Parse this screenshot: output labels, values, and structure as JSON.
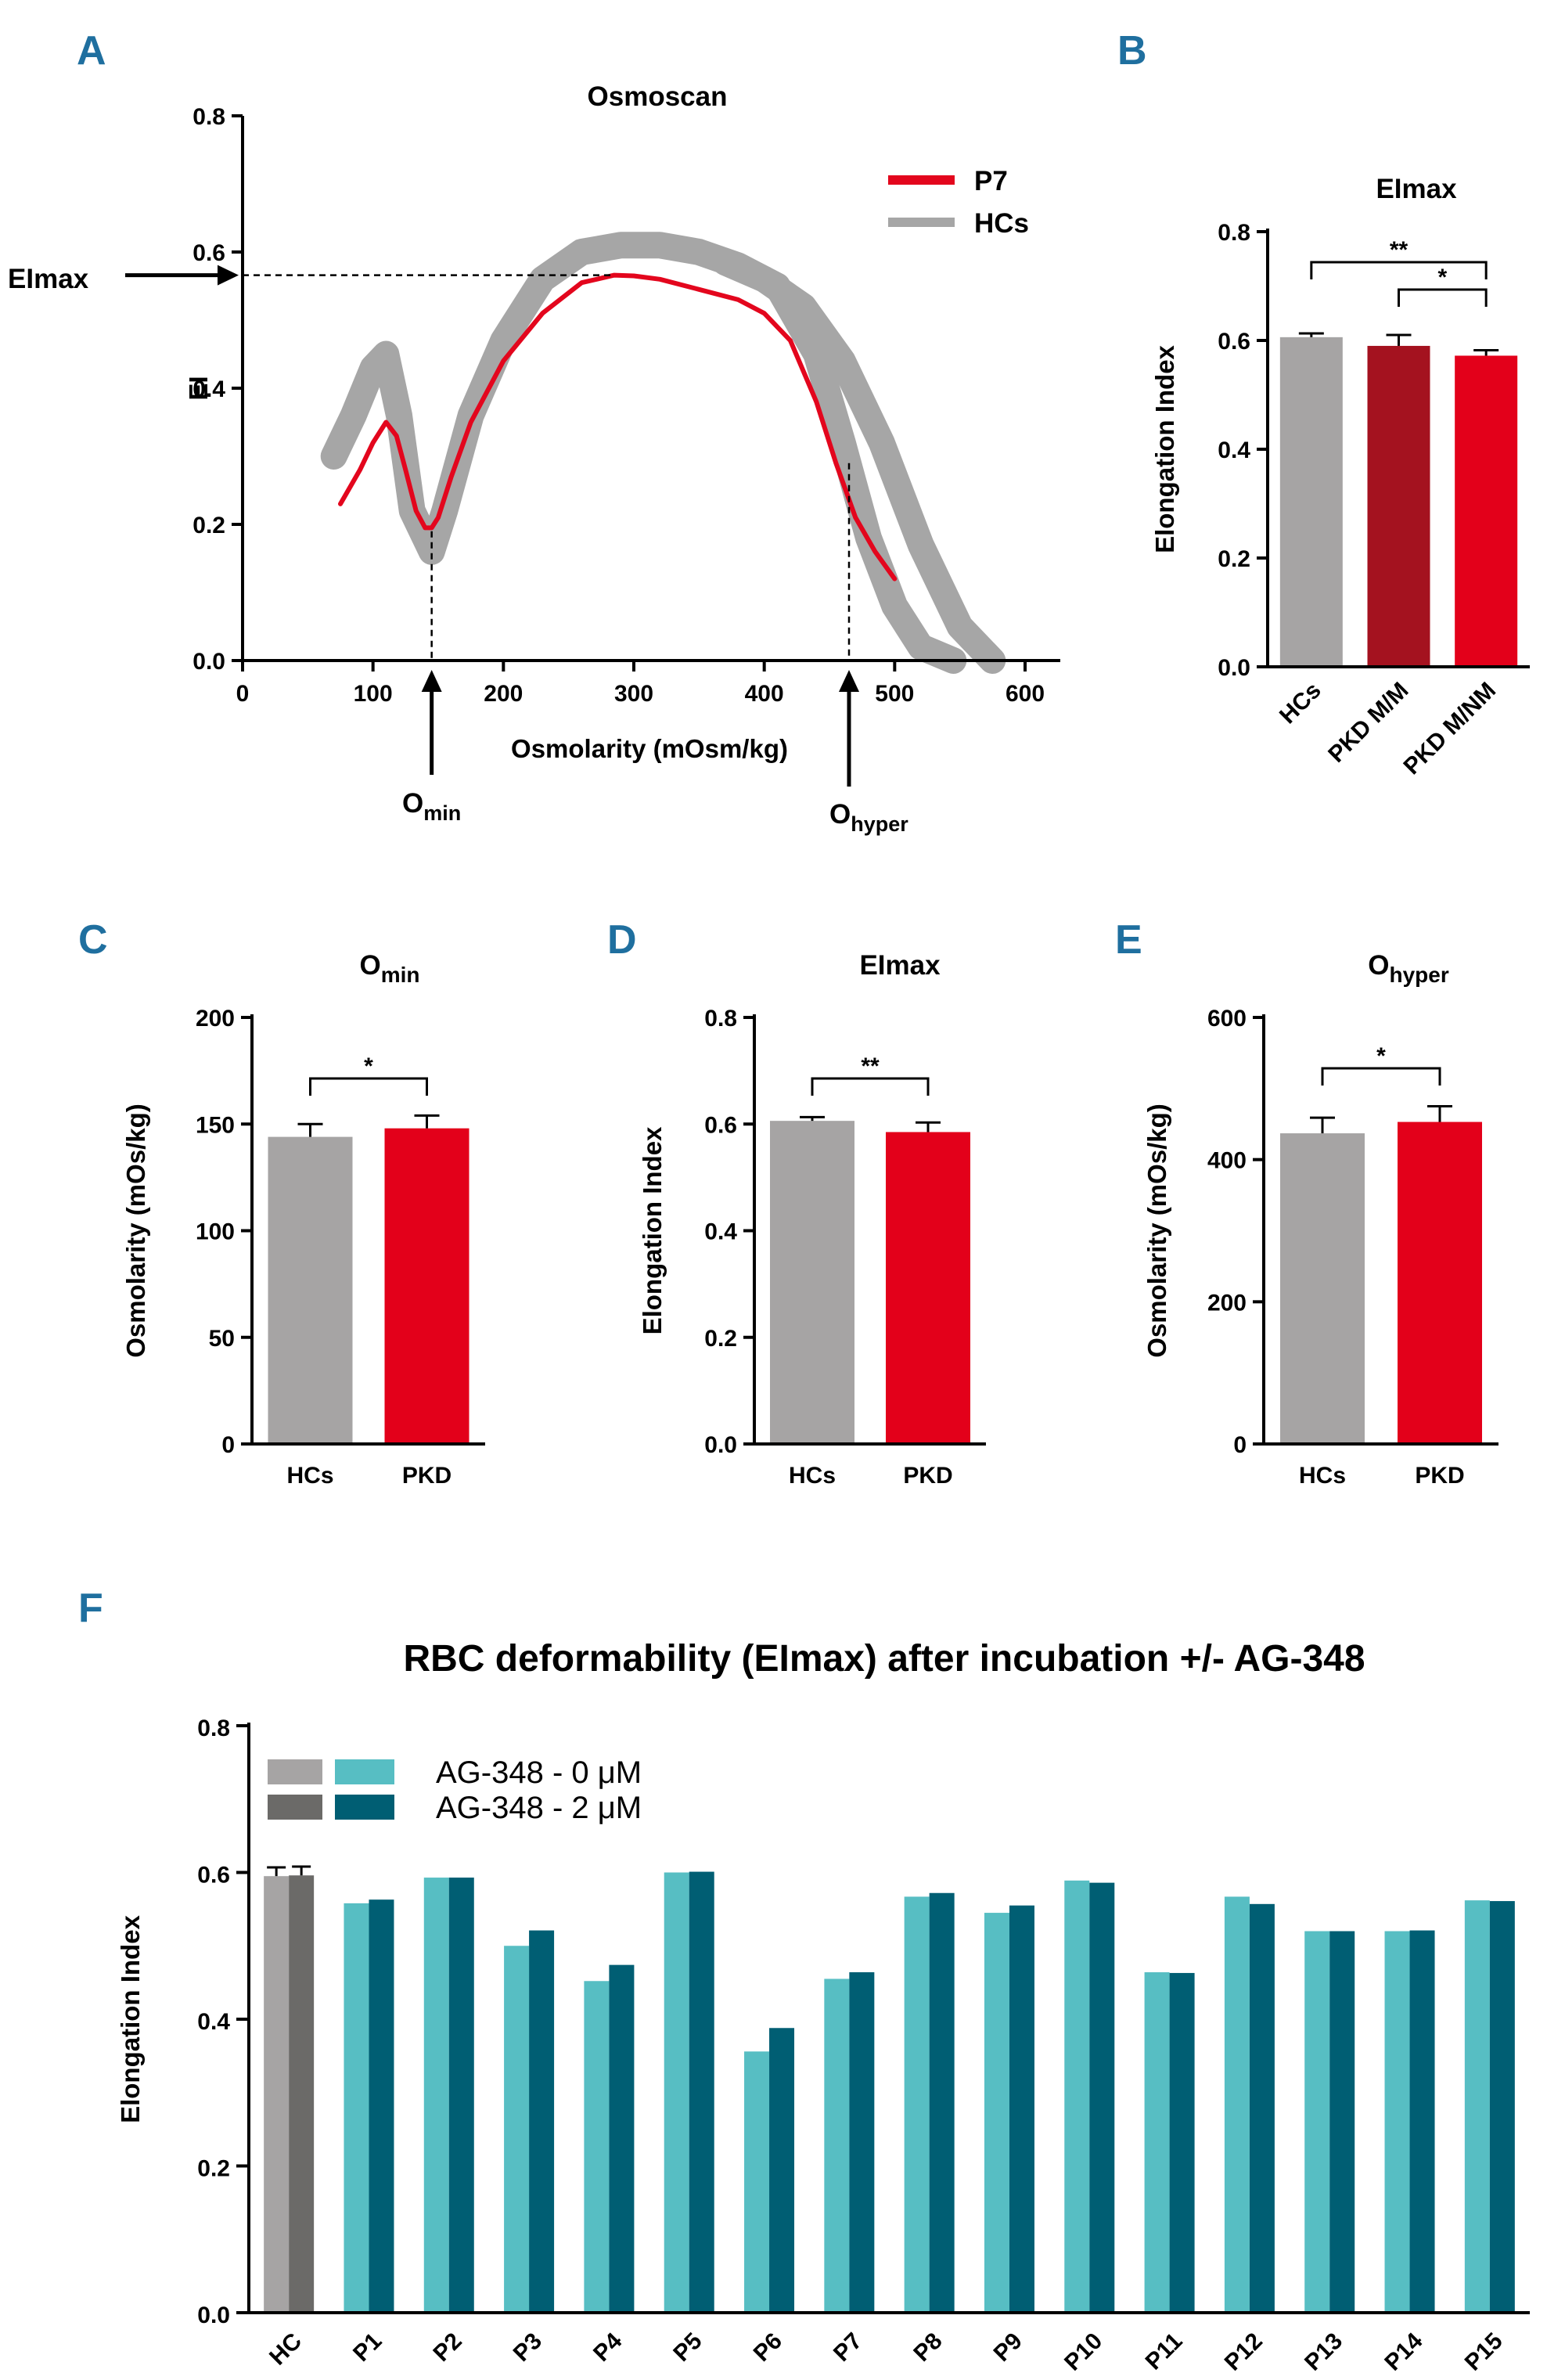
{
  "chart_data": [
    {
      "panel": "A",
      "type": "line",
      "title": "Osmoscan",
      "xlabel": "Osmolarity (mOsm/kg)",
      "ylabel": "EI",
      "xlim": [
        0,
        600
      ],
      "ylim": [
        0,
        0.8
      ],
      "xticks": [
        "0",
        "100",
        "200",
        "300",
        "400",
        "500",
        "600"
      ],
      "yticks": [
        "0.0",
        "0.2",
        "0.4",
        "0.6",
        "0.8"
      ],
      "legend": [
        "P7",
        "HCs"
      ],
      "colors": {
        "P7": "#e3061d",
        "HCs": "#a6a6a6"
      },
      "series": [
        {
          "name": "P7",
          "x": [
            75,
            90,
            100,
            110,
            118,
            125,
            133,
            140,
            145,
            150,
            160,
            175,
            200,
            230,
            260,
            285,
            300,
            320,
            350,
            380,
            400,
            420,
            440,
            455,
            470,
            485,
            500
          ],
          "y": [
            0.23,
            0.28,
            0.32,
            0.35,
            0.33,
            0.28,
            0.22,
            0.195,
            0.195,
            0.21,
            0.27,
            0.35,
            0.44,
            0.51,
            0.555,
            0.566,
            0.565,
            0.56,
            0.545,
            0.53,
            0.51,
            0.47,
            0.38,
            0.29,
            0.21,
            0.16,
            0.12
          ]
        },
        {
          "name": "HCs",
          "x": [
            70,
            85,
            100,
            110,
            120,
            130,
            145,
            155,
            175,
            200,
            230,
            260,
            290,
            320,
            350,
            380,
            410,
            440,
            460,
            480,
            500,
            520,
            545
          ],
          "y": [
            0.3,
            0.36,
            0.43,
            0.45,
            0.36,
            0.22,
            0.16,
            0.22,
            0.36,
            0.47,
            0.56,
            0.6,
            0.61,
            0.61,
            0.6,
            0.58,
            0.55,
            0.45,
            0.32,
            0.18,
            0.08,
            0.02,
            0.0
          ]
        },
        {
          "name": "HCs",
          "x": [
            370,
            400,
            430,
            460,
            490,
            520,
            550,
            575
          ],
          "y": [
            0.585,
            0.56,
            0.52,
            0.44,
            0.32,
            0.17,
            0.05,
            0.0
          ]
        }
      ],
      "annotations": {
        "elmax_label": "EImax",
        "elmax_value": 0.566,
        "omin_label": "O",
        "omin_sub": "min",
        "omin_x": 145,
        "ohyper_label": "O",
        "ohyper_sub": "hyper",
        "ohyper_x": 465
      }
    },
    {
      "panel": "B",
      "type": "bar",
      "title": "EImax",
      "ylabel": "Elongation Index",
      "ylim": [
        0,
        0.8
      ],
      "yticks": [
        "0.0",
        "0.2",
        "0.4",
        "0.6",
        "0.8"
      ],
      "categories": [
        "HCs",
        "PKD M/M",
        "PKD M/NM"
      ],
      "values": [
        0.606,
        0.59,
        0.572
      ],
      "errors": [
        0.007,
        0.02,
        0.01
      ],
      "colors": [
        "#a6a4a4",
        "#a4121f",
        "#e3001a"
      ],
      "significance": [
        {
          "from": 0,
          "to": 2,
          "label": "**"
        },
        {
          "from": 1,
          "to": 2,
          "label": "*"
        }
      ]
    },
    {
      "panel": "C",
      "type": "bar",
      "title": "O",
      "title_sub": "min",
      "ylabel": "Osmolarity (mOs/kg)",
      "ylim": [
        0,
        200
      ],
      "yticks": [
        "0",
        "50",
        "100",
        "150",
        "200"
      ],
      "categories": [
        "HCs",
        "PKD"
      ],
      "values": [
        144,
        148
      ],
      "errors": [
        6,
        6
      ],
      "colors": [
        "#a6a4a4",
        "#e3001a"
      ],
      "significance": [
        {
          "from": 0,
          "to": 1,
          "label": "*"
        }
      ]
    },
    {
      "panel": "D",
      "type": "bar",
      "title": "EImax",
      "ylabel": "Elongation Index",
      "ylim": [
        0,
        0.8
      ],
      "yticks": [
        "0.0",
        "0.2",
        "0.4",
        "0.6",
        "0.8"
      ],
      "categories": [
        "HCs",
        "PKD"
      ],
      "values": [
        0.606,
        0.585
      ],
      "errors": [
        0.007,
        0.018
      ],
      "colors": [
        "#a6a4a4",
        "#e3001a"
      ],
      "significance": [
        {
          "from": 0,
          "to": 1,
          "label": "**"
        }
      ]
    },
    {
      "panel": "E",
      "type": "bar",
      "title": "O",
      "title_sub": "hyper",
      "ylabel": "Osmolarity (mOs/kg)",
      "ylim": [
        0,
        600
      ],
      "yticks": [
        "0",
        "200",
        "400",
        "600"
      ],
      "categories": [
        "HCs",
        "PKD"
      ],
      "values": [
        437,
        453
      ],
      "errors": [
        22,
        22
      ],
      "colors": [
        "#a6a4a4",
        "#e3001a"
      ],
      "significance": [
        {
          "from": 0,
          "to": 1,
          "label": "*"
        }
      ]
    },
    {
      "panel": "F",
      "type": "bar",
      "title": "RBC deformability (EImax) after incubation +/- AG-348",
      "ylabel": "Elongation Index",
      "ylim": [
        0,
        0.8
      ],
      "yticks": [
        "0.0",
        "0.2",
        "0.4",
        "0.6",
        "0.8"
      ],
      "categories": [
        "HC",
        "P1",
        "P2",
        "P3",
        "P4",
        "P5",
        "P6",
        "P7",
        "P8",
        "P9",
        "P10",
        "P11",
        "P12",
        "P13",
        "P14",
        "P15"
      ],
      "legend": [
        "AG-348 - 0 μM",
        "AG-348 - 2 μM"
      ],
      "series": [
        {
          "name": "AG-348 - 0 μM",
          "values": [
            0.595,
            0.558,
            0.593,
            0.5,
            0.452,
            0.6,
            0.356,
            0.455,
            0.567,
            0.545,
            0.589,
            0.464,
            0.567,
            0.52,
            0.52,
            0.562
          ],
          "colors": {
            "HC": "#a6a4a4",
            "patients": "#57bec3"
          }
        },
        {
          "name": "AG-348 - 2 μM",
          "values": [
            0.596,
            0.563,
            0.593,
            0.521,
            0.474,
            0.601,
            0.388,
            0.464,
            0.572,
            0.555,
            0.586,
            0.463,
            0.557,
            0.52,
            0.521,
            0.561
          ],
          "colors": {
            "HC": "#6b6a68",
            "patients": "#005e73"
          }
        }
      ],
      "hc_errors": [
        0.012,
        0.012
      ]
    }
  ]
}
